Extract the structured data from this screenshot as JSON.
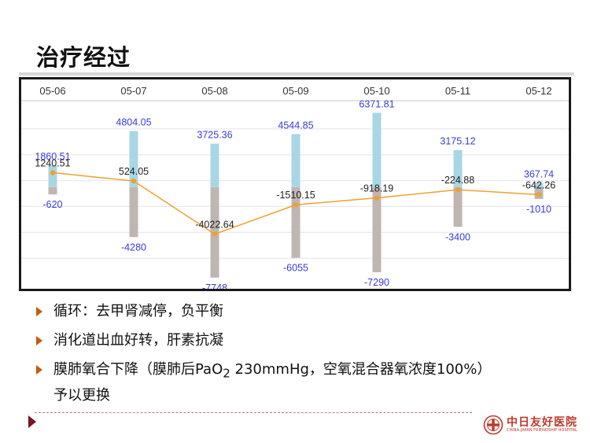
{
  "slide": {
    "title": "治疗经过",
    "bullets": [
      {
        "text": "循环：去甲肾减停，负平衡"
      },
      {
        "text": "消化道出血好转，肝素抗凝"
      },
      {
        "text_before": "膜肺氧合下降（膜肺后PaO",
        "sub": "2",
        "text_after": " 230mmHg，空氧混合器氧浓度100%）",
        "text_line2": "予以更换"
      }
    ]
  },
  "logo": {
    "name_cn": "中日友好医院",
    "name_en": "CHINA-JAPAN FRIENDSHIP HOSPITAL"
  },
  "colors": {
    "intake_bar": "#a9d6e5",
    "output_bar": "#bfb6b3",
    "net_line": "#f0a030",
    "bar_label": "#3a3ae0",
    "net_label": "#222222",
    "bullet_arrow": "#c55a11",
    "accent": "#7a1426"
  },
  "chart_data": {
    "type": "bar",
    "categories": [
      "05-06",
      "05-07",
      "05-08",
      "05-09",
      "05-10",
      "05-11",
      "05-12"
    ],
    "series": [
      {
        "values": [
          1860.51,
          4804.05,
          3725.36,
          4544.85,
          6371.81,
          3175.12,
          367.74
        ]
      },
      {
        "values": [
          -620,
          -4280,
          -7748,
          -6055,
          -7290,
          -3400,
          -1010
        ]
      },
      {
        "type": "line",
        "values": [
          1240.51,
          524.05,
          -4022.64,
          -1510.15,
          -918.19,
          -224.88,
          -642.26
        ]
      }
    ],
    "ylim": [
      -8300,
      7200
    ],
    "grid": true,
    "legend": "none",
    "title": "",
    "xlabel": "",
    "ylabel": ""
  }
}
